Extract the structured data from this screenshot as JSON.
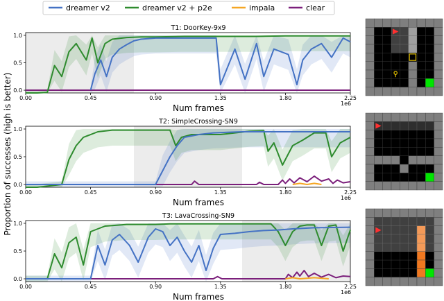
{
  "legend": {
    "items": [
      {
        "label": "dreamer v2",
        "color": "#4472c4"
      },
      {
        "label": "dreamer v2 + p2e",
        "color": "#2e8b2e"
      },
      {
        "label": "impala",
        "color": "#f5a623"
      },
      {
        "label": "clear",
        "color": "#7b1f7b"
      }
    ]
  },
  "ylabel": "Proportion of successes (high is better)",
  "chart_data": [
    {
      "type": "line",
      "title": "T1: DoorKey-9x9",
      "xlabel": "Num frames",
      "x_scale_label": "1e6",
      "xlim": [
        0,
        2.25
      ],
      "ylim": [
        -0.05,
        1.05
      ],
      "x_ticks": [
        "0.00",
        "0.45",
        "0.90",
        "1.35",
        "1.80",
        "2.25"
      ],
      "y_ticks": [
        "0.0",
        "0.5",
        "1.0"
      ],
      "shaded_region": [
        0,
        0.75
      ],
      "series": [
        {
          "name": "dreamer v2",
          "x": [
            0.45,
            0.48,
            0.52,
            0.56,
            0.6,
            0.65,
            0.7,
            0.75,
            0.8,
            0.9,
            1.0,
            1.1,
            1.2,
            1.32,
            1.35,
            1.45,
            1.52,
            1.6,
            1.65,
            1.72,
            1.82,
            1.88,
            1.92,
            1.98,
            2.05,
            2.12,
            2.2,
            2.25
          ],
          "y": [
            0.0,
            0.3,
            0.55,
            0.25,
            0.6,
            0.75,
            0.83,
            0.9,
            0.93,
            0.95,
            0.95,
            0.95,
            0.95,
            0.95,
            0.1,
            0.75,
            0.2,
            0.85,
            0.25,
            0.75,
            0.65,
            0.1,
            0.55,
            0.75,
            0.85,
            0.6,
            0.95,
            0.88
          ]
        },
        {
          "name": "dreamer v2 + p2e",
          "x": [
            0.0,
            0.08,
            0.15,
            0.2,
            0.25,
            0.3,
            0.35,
            0.42,
            0.46,
            0.5,
            0.55,
            0.6,
            0.7,
            0.8,
            0.9,
            1.1,
            1.35,
            1.6,
            1.8,
            2.0,
            2.25
          ],
          "y": [
            -0.05,
            -0.05,
            -0.04,
            0.45,
            0.25,
            0.7,
            0.85,
            0.55,
            0.95,
            0.5,
            0.85,
            0.93,
            0.96,
            0.97,
            0.97,
            0.98,
            0.98,
            0.98,
            0.99,
            0.99,
            0.99
          ]
        },
        {
          "name": "clear",
          "x": [
            0.0,
            2.25
          ],
          "y": [
            0.0,
            0.0
          ]
        }
      ]
    },
    {
      "type": "line",
      "title": "T2: SimpleCrossing-SN9",
      "xlabel": "Num frames",
      "x_scale_label": "1e6",
      "xlim": [
        0,
        2.25
      ],
      "ylim": [
        -0.05,
        1.05
      ],
      "x_ticks": [
        "0.00",
        "0.45",
        "0.90",
        "1.35",
        "1.80",
        "2.25"
      ],
      "y_ticks": [
        "0.0",
        "0.5",
        "1.0"
      ],
      "shaded_region": [
        0.75,
        1.5
      ],
      "series": [
        {
          "name": "dreamer v2",
          "x": [
            0.0,
            0.9,
            0.95,
            1.0,
            1.05,
            1.1,
            1.2,
            1.3,
            1.4,
            1.5,
            1.7,
            1.9,
            2.1,
            2.25
          ],
          "y": [
            0.0,
            0.0,
            0.25,
            0.5,
            0.7,
            0.85,
            0.9,
            0.93,
            0.94,
            0.95,
            0.95,
            0.95,
            0.95,
            0.95
          ]
        },
        {
          "name": "dreamer v2 + p2e",
          "x": [
            0.0,
            0.08,
            0.25,
            0.3,
            0.35,
            0.4,
            0.5,
            0.6,
            0.8,
            1.0,
            1.04,
            1.08,
            1.15,
            1.25,
            1.35,
            1.45,
            1.55,
            1.65,
            1.68,
            1.72,
            1.78,
            1.85,
            1.92,
            2.0,
            2.08,
            2.12,
            2.18,
            2.25
          ],
          "y": [
            -0.05,
            -0.05,
            0.0,
            0.45,
            0.7,
            0.85,
            0.95,
            0.98,
            0.98,
            0.98,
            0.7,
            0.85,
            0.9,
            0.9,
            0.9,
            0.93,
            0.96,
            0.97,
            0.6,
            0.75,
            0.35,
            0.7,
            0.8,
            0.93,
            0.93,
            0.5,
            0.75,
            0.85
          ]
        },
        {
          "name": "impala",
          "x": [
            1.85,
            1.9,
            1.95,
            2.0,
            2.05
          ],
          "y": [
            0.0,
            0.02,
            0.0,
            0.02,
            0.0
          ]
        },
        {
          "name": "clear",
          "x": [
            0.0,
            1.15,
            1.17,
            1.2,
            1.6,
            1.62,
            1.65,
            1.75,
            1.78,
            1.8,
            1.83,
            1.86,
            1.9,
            1.95,
            2.0,
            2.05,
            2.1,
            2.13,
            2.16,
            2.2,
            2.25
          ],
          "y": [
            0.0,
            0.0,
            0.06,
            0.0,
            0.0,
            0.04,
            0.0,
            0.0,
            0.08,
            0.02,
            0.1,
            0.03,
            0.12,
            0.05,
            0.15,
            0.06,
            0.1,
            0.02,
            0.08,
            0.03,
            0.05
          ]
        }
      ]
    },
    {
      "type": "line",
      "title": "T3: LavaCrossing-SN9",
      "xlabel": "Num frames",
      "x_scale_label": "1e6",
      "xlim": [
        0,
        2.25
      ],
      "ylim": [
        -0.05,
        1.05
      ],
      "x_ticks": [
        "0.00",
        "0.45",
        "0.90",
        "1.35",
        "1.80",
        "2.25"
      ],
      "y_ticks": [
        "0.0",
        "0.5",
        "1.0"
      ],
      "shaded_region": [
        1.5,
        2.25
      ],
      "series": [
        {
          "name": "dreamer v2",
          "x": [
            0.0,
            0.45,
            0.5,
            0.55,
            0.6,
            0.65,
            0.72,
            0.78,
            0.85,
            0.9,
            0.95,
            1.0,
            1.05,
            1.1,
            1.15,
            1.2,
            1.25,
            1.3,
            1.35,
            1.45,
            1.55,
            1.65,
            1.75,
            1.85,
            2.0,
            2.25
          ],
          "y": [
            0.0,
            0.0,
            0.6,
            0.25,
            0.7,
            0.8,
            0.6,
            0.3,
            0.75,
            0.9,
            0.85,
            0.6,
            0.75,
            0.5,
            0.3,
            0.6,
            0.15,
            0.55,
            0.8,
            0.82,
            0.85,
            0.87,
            0.88,
            0.9,
            0.92,
            0.93
          ]
        },
        {
          "name": "dreamer v2 + p2e",
          "x": [
            0.0,
            0.1,
            0.15,
            0.2,
            0.25,
            0.3,
            0.35,
            0.4,
            0.45,
            0.5,
            0.55,
            0.6,
            0.7,
            0.8,
            0.9,
            1.0,
            1.2,
            1.4,
            1.6,
            1.65,
            1.7,
            1.75,
            1.8,
            1.85,
            1.9,
            1.95,
            2.0,
            2.05,
            2.1,
            2.15,
            2.2,
            2.25
          ],
          "y": [
            0.0,
            0.0,
            0.0,
            0.45,
            0.2,
            0.65,
            0.75,
            0.25,
            0.85,
            0.9,
            0.95,
            0.96,
            0.98,
            0.98,
            0.98,
            0.99,
            0.99,
            0.99,
            0.99,
            0.99,
            0.99,
            0.85,
            0.6,
            0.85,
            0.95,
            0.97,
            0.97,
            0.6,
            0.95,
            0.97,
            0.5,
            0.88
          ]
        },
        {
          "name": "impala",
          "x": [
            1.8,
            1.85,
            1.9,
            2.0,
            2.1
          ],
          "y": [
            0.0,
            0.02,
            0.0,
            0.02,
            0.0
          ]
        },
        {
          "name": "clear",
          "x": [
            0.0,
            1.3,
            1.33,
            1.36,
            1.8,
            1.82,
            1.85,
            1.88,
            1.9,
            1.93,
            1.96,
            2.0,
            2.05,
            2.1,
            2.15,
            2.2,
            2.25
          ],
          "y": [
            0.0,
            0.0,
            0.04,
            0.0,
            0.0,
            0.08,
            0.02,
            0.12,
            0.05,
            0.15,
            0.04,
            0.1,
            0.03,
            0.08,
            0.02,
            0.05,
            0.04
          ]
        }
      ]
    }
  ],
  "thumbnails": [
    {
      "name": "DoorKey-9x9 environment",
      "key_icon": "key-icon",
      "agent_icon": "red-triangle-agent-icon",
      "goal_color": "#00e600"
    },
    {
      "name": "SimpleCrossing-SN9 environment",
      "agent_icon": "red-triangle-agent-icon",
      "goal_color": "#00e600"
    },
    {
      "name": "LavaCrossing-SN9 environment",
      "agent_icon": "red-triangle-agent-icon",
      "lava_color": "#f07820",
      "goal_color": "#00e600"
    }
  ]
}
